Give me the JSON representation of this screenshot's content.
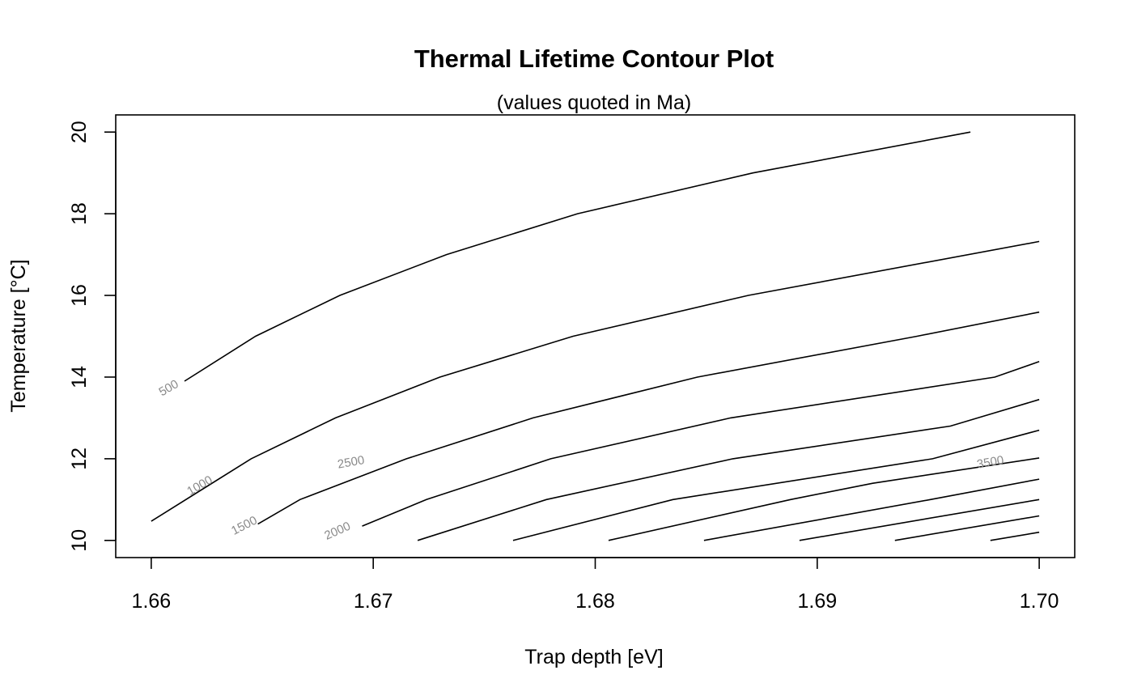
{
  "chart_data": {
    "type": "contour",
    "title": "Thermal Lifetime Contour Plot",
    "subtitle": "(values quoted in Ma)",
    "xlabel": "Trap depth [eV]",
    "ylabel": "Temperature [°C]",
    "xlim": [
      1.6584,
      1.7016
    ],
    "ylim": [
      9.58,
      20.42
    ],
    "xticks": [
      1.66,
      1.67,
      1.68,
      1.69,
      1.7
    ],
    "xtick_labels": [
      "1.66",
      "1.67",
      "1.68",
      "1.69",
      "1.70"
    ],
    "yticks": [
      10,
      12,
      14,
      16,
      18,
      20
    ],
    "ytick_labels": [
      "10",
      "12",
      "14",
      "16",
      "18",
      "20"
    ],
    "grid": false,
    "contours": [
      {
        "level": "500",
        "points": [
          [
            1.6615,
            13.9
          ],
          [
            1.6647,
            15.0
          ],
          [
            1.6685,
            16.0
          ],
          [
            1.6733,
            17.0
          ],
          [
            1.6792,
            18.0
          ],
          [
            1.6871,
            19.0
          ],
          [
            1.6969,
            20.0
          ]
        ]
      },
      {
        "level": "1000",
        "points": [
          [
            1.66,
            10.47
          ],
          [
            1.6645,
            12.0
          ],
          [
            1.6683,
            13.0
          ],
          [
            1.673,
            14.0
          ],
          [
            1.679,
            15.0
          ],
          [
            1.6869,
            16.0
          ],
          [
            1.7,
            17.32
          ]
        ]
      },
      {
        "level": "1500",
        "points": [
          [
            1.6648,
            10.4
          ],
          [
            1.6667,
            11.0
          ],
          [
            1.6715,
            12.0
          ],
          [
            1.6772,
            13.0
          ],
          [
            1.6846,
            14.0
          ],
          [
            1.6945,
            15.0
          ],
          [
            1.7,
            15.59
          ]
        ]
      },
      {
        "level": "2000",
        "points": [
          [
            1.6695,
            10.35
          ],
          [
            1.6724,
            11.0
          ],
          [
            1.678,
            12.0
          ],
          [
            1.6861,
            13.0
          ],
          [
            1.698,
            14.0
          ],
          [
            1.7,
            14.38
          ]
        ]
      },
      {
        "level": "2500",
        "points": [
          [
            1.672,
            10.0
          ],
          [
            1.6778,
            11.0
          ],
          [
            1.6862,
            12.0
          ],
          [
            1.696,
            12.8
          ],
          [
            1.7,
            13.45
          ]
        ]
      },
      {
        "level": "",
        "points": [
          [
            1.6763,
            10.0
          ],
          [
            1.6835,
            11.0
          ],
          [
            1.6952,
            12.0
          ],
          [
            1.7,
            12.7
          ]
        ]
      },
      {
        "level": "3500",
        "points": [
          [
            1.6806,
            10.0
          ],
          [
            1.6888,
            11.0
          ],
          [
            1.6925,
            11.4
          ],
          [
            1.7,
            12.02
          ]
        ]
      },
      {
        "level": "",
        "points": [
          [
            1.6849,
            10.0
          ],
          [
            1.6951,
            11.0
          ],
          [
            1.7,
            11.5
          ]
        ]
      },
      {
        "level": "",
        "points": [
          [
            1.6892,
            10.0
          ],
          [
            1.7,
            11.0
          ]
        ]
      },
      {
        "level": "",
        "points": [
          [
            1.6935,
            10.0
          ],
          [
            1.7,
            10.6
          ]
        ]
      },
      {
        "level": "",
        "points": [
          [
            1.6978,
            10.0
          ],
          [
            1.7,
            10.2
          ]
        ]
      }
    ],
    "contour_labels": [
      {
        "text": "500",
        "x": 1.6608,
        "y": 13.72
      },
      {
        "text": "1000",
        "x": 1.6622,
        "y": 11.33
      },
      {
        "text": "1500",
        "x": 1.6642,
        "y": 10.35
      },
      {
        "text": "2000",
        "x": 1.6684,
        "y": 10.22
      },
      {
        "text": "2500",
        "x": 1.669,
        "y": 11.9
      },
      {
        "text": "3500",
        "x": 1.6978,
        "y": 11.9
      }
    ]
  }
}
